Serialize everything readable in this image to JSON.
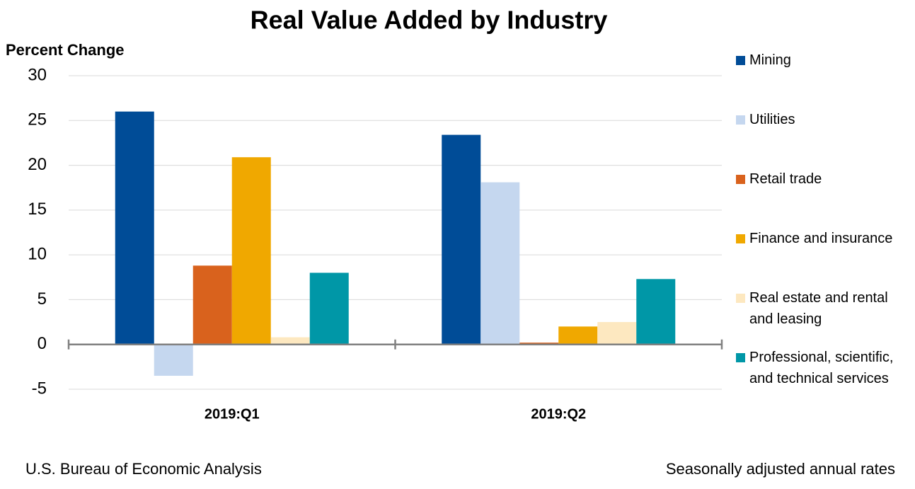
{
  "chart_data": {
    "type": "bar",
    "title": "Real Value Added by Industry",
    "y_label": "Percent Change",
    "categories": [
      "2019:Q1",
      "2019:Q2"
    ],
    "series": [
      {
        "name": "Mining",
        "color": "#004c97",
        "values": [
          26.0,
          23.4
        ]
      },
      {
        "name": "Utilities",
        "color": "#c5d7ef",
        "values": [
          -3.5,
          18.1
        ]
      },
      {
        "name": "Retail trade",
        "color": "#d9621d",
        "values": [
          8.8,
          0.2
        ]
      },
      {
        "name": "Finance and insurance",
        "color": "#f0a800",
        "values": [
          20.9,
          2.0
        ]
      },
      {
        "name": "Real estate and rental and leasing",
        "color": "#fde8c0",
        "values": [
          0.8,
          2.5
        ]
      },
      {
        "name": "Professional, scientific, and technical services",
        "color": "#0097a7",
        "values": [
          8.0,
          7.3
        ]
      }
    ],
    "ylim": [
      -5,
      30
    ],
    "yticks": [
      -5,
      0,
      5,
      10,
      15,
      20,
      25,
      30
    ],
    "grid": true,
    "legend": "right",
    "source": "U.S. Bureau of Economic Analysis",
    "note": "Seasonally adjusted annual rates"
  }
}
